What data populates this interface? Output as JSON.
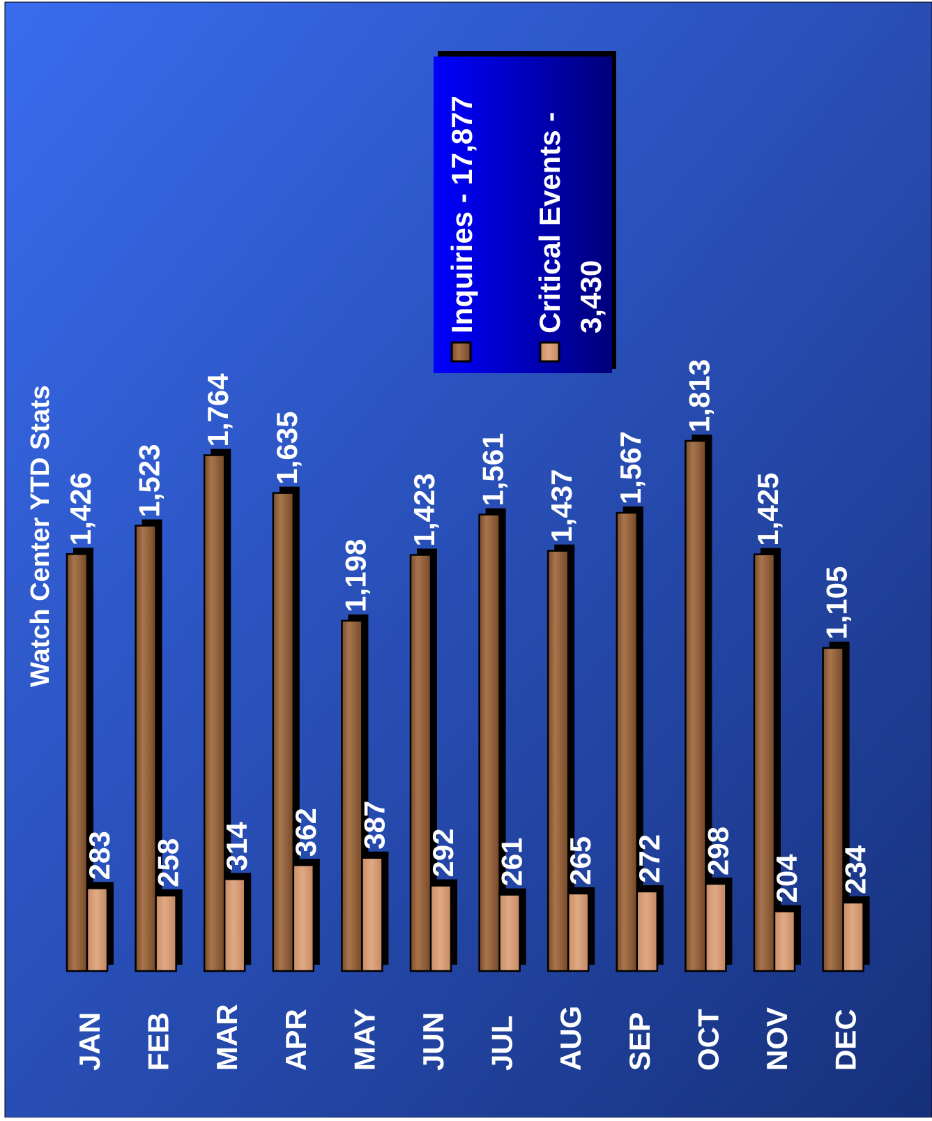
{
  "chart_data": {
    "type": "bar",
    "title": "Watch Center YTD Stats",
    "categories": [
      "JAN",
      "FEB",
      "MAR",
      "APR",
      "MAY",
      "JUN",
      "JUL",
      "AUG",
      "SEP",
      "OCT",
      "NOV",
      "DEC"
    ],
    "series": [
      {
        "name": "Inquiries - 17,877",
        "values": [
          1426,
          1523,
          1764,
          1635,
          1198,
          1423,
          1561,
          1437,
          1567,
          1813,
          1425,
          1105
        ],
        "labels": [
          "1,426",
          "1,523",
          "1,764",
          "1,635",
          "1,198",
          "1,423",
          "1,561",
          "1,437",
          "1,567",
          "1,813",
          "1,425",
          "1,105"
        ],
        "color": "#9c6a43"
      },
      {
        "name": "Critical Events - 3,430",
        "values": [
          283,
          258,
          314,
          362,
          387,
          292,
          261,
          265,
          272,
          298,
          204,
          234
        ],
        "labels": [
          "283",
          "258",
          "314",
          "362",
          "387",
          "292",
          "261",
          "265",
          "272",
          "298",
          "204",
          "234"
        ],
        "color": "#d9a27c"
      }
    ],
    "ylim": [
      0,
      1900
    ],
    "grid": false,
    "legend": "top-right",
    "orientation": "rotated-90-clockwise"
  },
  "colors": {
    "background_light": "#3a6cf0",
    "background_dark": "#16307a",
    "legend_light": "#0000ff",
    "legend_dark": "#00007a",
    "text": "#ffffff",
    "shadow": "#000000"
  }
}
